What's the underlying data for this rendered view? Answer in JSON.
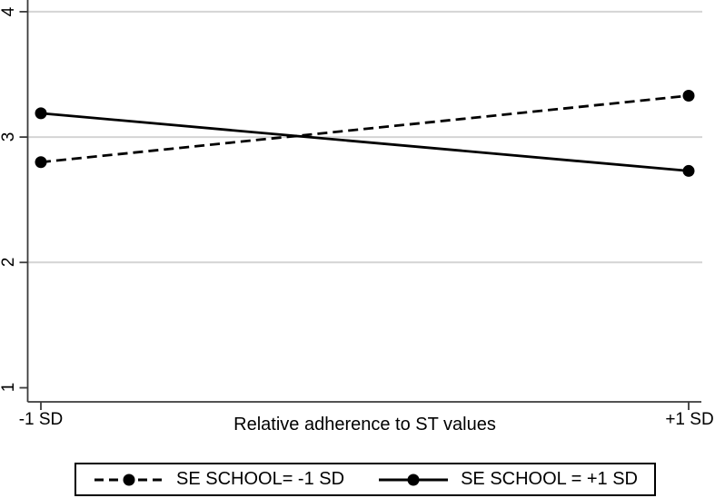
{
  "chart_data": {
    "type": "line",
    "title": "",
    "xlabel": "Relative adherence to ST values",
    "ylabel": "",
    "x_categories": [
      "-1 SD",
      "+1 SD"
    ],
    "series": [
      {
        "name": "SE SCHOOL= -1 SD",
        "line_style": "dashed",
        "marker": "circle",
        "color": "#000000",
        "values": [
          2.8,
          3.33
        ]
      },
      {
        "name": "SE SCHOOL = +1 SD",
        "line_style": "solid",
        "marker": "circle",
        "color": "#000000",
        "values": [
          3.19,
          2.73
        ]
      }
    ],
    "yticks": [
      1,
      2,
      3,
      4
    ],
    "ytick_labels": [
      "1",
      "2",
      "3",
      "4"
    ],
    "gridlines_at": [
      2,
      3,
      4
    ],
    "ylim": [
      0.88,
      4.09
    ],
    "grid": "horizontal",
    "legend_position": "bottom",
    "colors": {
      "background": "#ffffff",
      "gridline": "#d4d4d4",
      "axis": "#3a3a3a",
      "line": "#000000",
      "text": "#000000"
    }
  }
}
